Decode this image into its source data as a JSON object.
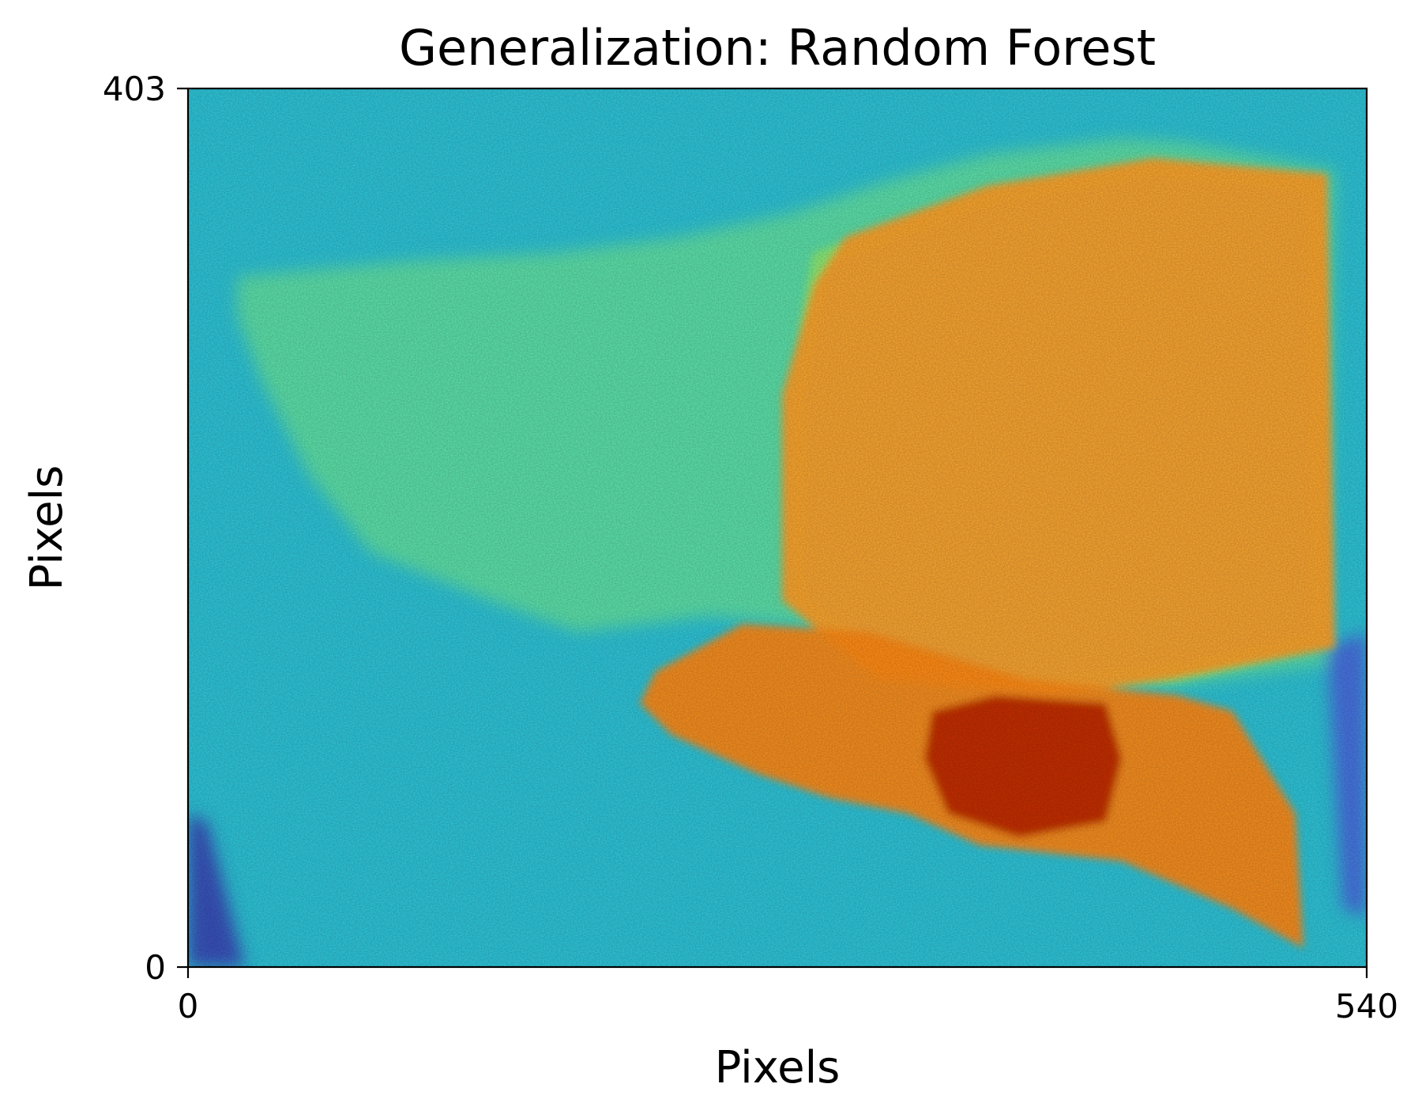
{
  "chart_data": {
    "type": "heatmap",
    "title": "Generalization: Random Forest",
    "xlabel": "Pixels",
    "ylabel": "Pixels",
    "xlim": [
      0,
      540
    ],
    "ylim": [
      0,
      403
    ],
    "xticks": [
      "0",
      "540"
    ],
    "yticks": [
      "0",
      "403"
    ],
    "colormap": "jet",
    "legend": "none",
    "colors": {
      "background_low": "#3b55d6",
      "field": "#2ec4d8",
      "mid": "#aef24a",
      "high": "#ff9a1f",
      "max": "#b81e00"
    },
    "regions": [
      {
        "name": "left plateau",
        "level": "mid-low",
        "color": "#6ee89a"
      },
      {
        "name": "right block",
        "level": "high",
        "color": "#ffa02a"
      },
      {
        "name": "lower ridge",
        "level": "high",
        "color": "#ff8a18"
      },
      {
        "name": "hot spot",
        "level": "max",
        "color": "#c02a00"
      },
      {
        "name": "bottom-left corner",
        "level": "low",
        "color": "#3a4bb8"
      },
      {
        "name": "right edge band",
        "level": "low",
        "color": "#4a6de0"
      }
    ]
  }
}
